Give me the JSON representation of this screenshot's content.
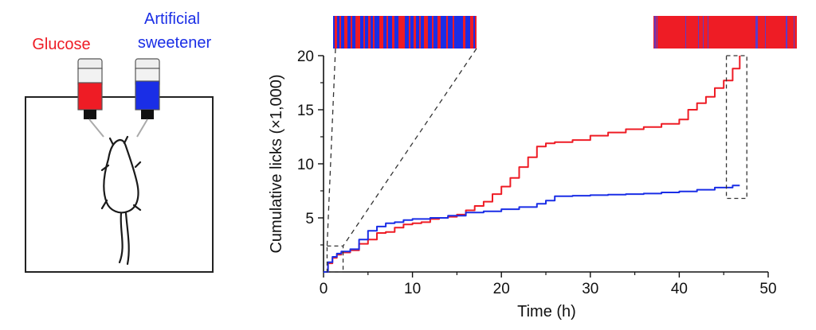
{
  "illustration": {
    "glucose_label": "Glucose",
    "sweetener_label_line1": "Artificial",
    "sweetener_label_line2": "sweetener",
    "glucose_color": "#ee1c25",
    "sweetener_color": "#1a2ee6"
  },
  "chart_data": {
    "type": "line",
    "title": "",
    "xlabel": "Time (h)",
    "ylabel": "Cumulative licks (×1,000)",
    "xlim": [
      0,
      50
    ],
    "ylim": [
      0,
      20
    ],
    "x_ticks": [
      0,
      10,
      20,
      30,
      40,
      50
    ],
    "y_ticks": [
      5,
      10,
      15,
      20
    ],
    "grid": false,
    "legend": "none",
    "series": [
      {
        "color": "#ee1c25",
        "x": [
          0,
          0.5,
          1,
          1.5,
          2,
          3,
          4,
          5,
          6,
          7,
          8,
          9,
          10,
          11,
          12,
          13,
          14,
          15,
          16,
          17,
          18,
          19,
          20,
          21,
          22,
          23,
          24,
          25,
          26,
          27,
          28,
          30,
          32,
          34,
          36,
          38,
          40,
          41,
          42,
          43,
          44,
          45,
          46,
          46.8
        ],
        "y": [
          0,
          0.8,
          1.3,
          1.6,
          1.8,
          2.0,
          2.6,
          3.0,
          3.6,
          3.7,
          4.1,
          4.4,
          4.5,
          4.6,
          4.9,
          5.0,
          5.1,
          5.3,
          5.7,
          6.1,
          6.5,
          7.2,
          7.9,
          8.7,
          9.7,
          10.6,
          11.6,
          11.9,
          12.0,
          12.0,
          12.2,
          12.6,
          12.9,
          13.2,
          13.4,
          13.7,
          14.1,
          15.0,
          15.6,
          16.2,
          17.0,
          17.7,
          18.8,
          20.0
        ]
      },
      {
        "color": "#1a2ee6",
        "x": [
          0,
          0.5,
          1,
          1.5,
          2,
          3,
          4,
          5,
          6,
          7,
          8,
          9,
          10,
          12,
          14,
          16,
          18,
          20,
          22,
          24,
          25,
          26,
          28,
          30,
          32,
          34,
          36,
          38,
          40,
          42,
          44,
          46,
          46.8
        ],
        "y": [
          0,
          0.9,
          1.4,
          1.7,
          1.9,
          2.1,
          3.0,
          3.8,
          4.2,
          4.5,
          4.6,
          4.8,
          4.9,
          5.0,
          5.2,
          5.5,
          5.6,
          5.8,
          6.0,
          6.3,
          6.6,
          7.0,
          7.05,
          7.1,
          7.15,
          7.2,
          7.25,
          7.35,
          7.45,
          7.6,
          7.8,
          8.0,
          8.0
        ]
      }
    ]
  }
}
